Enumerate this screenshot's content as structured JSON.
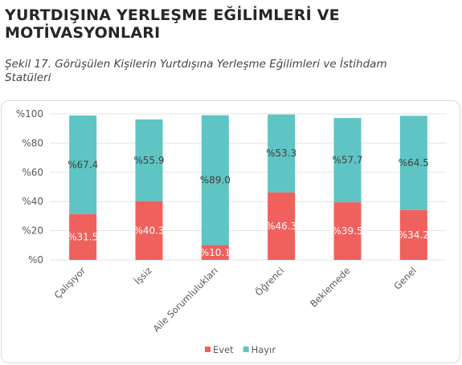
{
  "heading": {
    "line1": "YURTDIŞINA YERLEŞME EĞİLİMLERİ VE",
    "line2": "MOTİVASYONLARI"
  },
  "caption": {
    "line1": "Şekil 17. Görüşülen Kişilerin Yurtdışına Yerleşme Eğilimleri ve İstihdam",
    "line2": "Statüleri"
  },
  "colors": {
    "evet": "#f0605d",
    "hayir": "#5fc4c4"
  },
  "chart_data": {
    "type": "bar",
    "stacked": true,
    "categories": [
      "Çalışıyor",
      "İşsiz",
      "Aile Sorumlulukları",
      "Öğrenci",
      "Beklemede",
      "Genel"
    ],
    "series": [
      {
        "name": "Evet",
        "values": [
          31.5,
          40.3,
          10.1,
          46.3,
          39.5,
          34.2
        ],
        "labels": [
          "%31.5",
          "%40.3",
          "%10.1",
          "%46.3",
          "%39.5",
          "%34.2"
        ]
      },
      {
        "name": "Hayır",
        "values": [
          67.4,
          55.9,
          89.0,
          53.3,
          57.7,
          64.5
        ],
        "labels": [
          "%67.4",
          "%55.9",
          "%89.0",
          "%53.3",
          "%57.7",
          "%64.5"
        ]
      }
    ],
    "yticks": [
      "%0",
      "%20",
      "%40",
      "%60",
      "%80",
      "%100"
    ],
    "ylim": [
      0,
      100
    ],
    "legend_position": "bottom",
    "grid": true
  }
}
